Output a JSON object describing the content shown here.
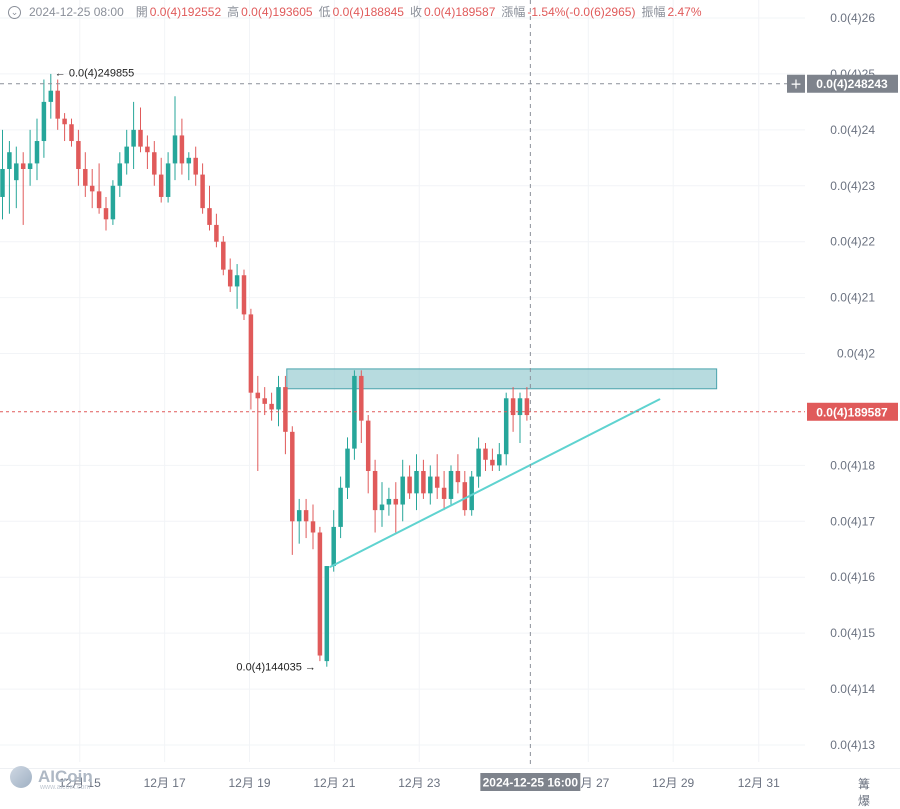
{
  "header": {
    "datetime": "2024-12-25 08:00",
    "open_label": "開",
    "open": "0.0(4)192552",
    "high_label": "高",
    "high": "0.0(4)193605",
    "low_label": "低",
    "low": "0.0(4)188845",
    "close_label": "收",
    "close": "0.0(4)189587",
    "change_label": "漲幅",
    "change": "-1.54%(-0.0(6)2965)",
    "amplitude_label": "振幅",
    "amplitude": "2.47%"
  },
  "crosshair": {
    "price_label": "0.0(4)248243",
    "time_label": "2024-12-25 16:00",
    "plus_glyph": "+"
  },
  "last_price": {
    "label": "0.0(4)189587",
    "value": 1.89587
  },
  "markers": {
    "high_text": "← 0.0(4)249855",
    "high_value": 2.49855,
    "low_text": "0.0(4)144035 →",
    "low_value": 1.44035
  },
  "watermark": {
    "brand": "AICoin",
    "sub": "www.aicoin.com"
  },
  "corner_icons": "篝 爆",
  "colors": {
    "up": "#26a69a",
    "down": "#e05a5a",
    "zone_fill": "#9fcfd4",
    "zone_border": "#4aa3ad",
    "trendline": "#5fd3d0",
    "crosshair_box": "#7e838c",
    "last_price_box": "#e05a5a",
    "axis_text": "#6b7280"
  },
  "chart_data": {
    "type": "candlestick",
    "units": "× 0.0(4) = price / 10^-5",
    "ylim": [
      1.285,
      2.63
    ],
    "y_ticks": [
      {
        "v": 2.6,
        "label": "0.0(4)26"
      },
      {
        "v": 2.5,
        "label": "0.0(4)25"
      },
      {
        "v": 2.4,
        "label": "0.0(4)24"
      },
      {
        "v": 2.3,
        "label": "0.0(4)23"
      },
      {
        "v": 2.2,
        "label": "0.0(4)22"
      },
      {
        "v": 2.1,
        "label": "0.0(4)21"
      },
      {
        "v": 2.0,
        "label": "0.0(4)2"
      },
      {
        "v": 1.8,
        "label": "0.0(4)18"
      },
      {
        "v": 1.7,
        "label": "0.0(4)17"
      },
      {
        "v": 1.6,
        "label": "0.0(4)16"
      },
      {
        "v": 1.5,
        "label": "0.0(4)15"
      },
      {
        "v": 1.4,
        "label": "0.0(4)14"
      },
      {
        "v": 1.3,
        "label": "0.0(4)13"
      }
    ],
    "x_ticks": [
      {
        "i": 11.2,
        "label": "12月 15"
      },
      {
        "i": 23.5,
        "label": "12月 17"
      },
      {
        "i": 35.8,
        "label": "12月 19"
      },
      {
        "i": 48.1,
        "label": "12月 21"
      },
      {
        "i": 60.4,
        "label": "12月 23"
      },
      {
        "i": 84.9,
        "label": "12月 27"
      },
      {
        "i": 97.2,
        "label": "12月 29"
      },
      {
        "i": 109.6,
        "label": "12月 31"
      }
    ],
    "crosshair_index": 76.5,
    "crosshair_value": 2.48243,
    "candles": [
      {
        "o": 2.28,
        "h": 2.4,
        "l": 2.24,
        "c": 2.33
      },
      {
        "o": 2.33,
        "h": 2.38,
        "l": 2.25,
        "c": 2.36
      },
      {
        "o": 2.31,
        "h": 2.37,
        "l": 2.26,
        "c": 2.34
      },
      {
        "o": 2.34,
        "h": 2.36,
        "l": 2.23,
        "c": 2.33
      },
      {
        "o": 2.33,
        "h": 2.4,
        "l": 2.3,
        "c": 2.34
      },
      {
        "o": 2.34,
        "h": 2.42,
        "l": 2.31,
        "c": 2.38
      },
      {
        "o": 2.38,
        "h": 2.49,
        "l": 2.35,
        "c": 2.45
      },
      {
        "o": 2.45,
        "h": 2.5,
        "l": 2.42,
        "c": 2.47
      },
      {
        "o": 2.47,
        "h": 2.49,
        "l": 2.4,
        "c": 2.42
      },
      {
        "o": 2.42,
        "h": 2.43,
        "l": 2.38,
        "c": 2.41
      },
      {
        "o": 2.41,
        "h": 2.42,
        "l": 2.37,
        "c": 2.38
      },
      {
        "o": 2.38,
        "h": 2.4,
        "l": 2.3,
        "c": 2.33
      },
      {
        "o": 2.33,
        "h": 2.36,
        "l": 2.28,
        "c": 2.3
      },
      {
        "o": 2.3,
        "h": 2.33,
        "l": 2.26,
        "c": 2.29
      },
      {
        "o": 2.29,
        "h": 2.34,
        "l": 2.25,
        "c": 2.26
      },
      {
        "o": 2.26,
        "h": 2.28,
        "l": 2.22,
        "c": 2.24
      },
      {
        "o": 2.24,
        "h": 2.31,
        "l": 2.23,
        "c": 2.3
      },
      {
        "o": 2.3,
        "h": 2.36,
        "l": 2.28,
        "c": 2.34
      },
      {
        "o": 2.34,
        "h": 2.4,
        "l": 2.32,
        "c": 2.37
      },
      {
        "o": 2.37,
        "h": 2.45,
        "l": 2.33,
        "c": 2.4
      },
      {
        "o": 2.4,
        "h": 2.44,
        "l": 2.36,
        "c": 2.37
      },
      {
        "o": 2.37,
        "h": 2.39,
        "l": 2.33,
        "c": 2.36
      },
      {
        "o": 2.36,
        "h": 2.38,
        "l": 2.3,
        "c": 2.32
      },
      {
        "o": 2.32,
        "h": 2.35,
        "l": 2.27,
        "c": 2.28
      },
      {
        "o": 2.28,
        "h": 2.36,
        "l": 2.27,
        "c": 2.34
      },
      {
        "o": 2.34,
        "h": 2.46,
        "l": 2.31,
        "c": 2.39
      },
      {
        "o": 2.39,
        "h": 2.42,
        "l": 2.32,
        "c": 2.34
      },
      {
        "o": 2.34,
        "h": 2.36,
        "l": 2.31,
        "c": 2.35
      },
      {
        "o": 2.35,
        "h": 2.37,
        "l": 2.3,
        "c": 2.32
      },
      {
        "o": 2.32,
        "h": 2.34,
        "l": 2.25,
        "c": 2.26
      },
      {
        "o": 2.26,
        "h": 2.3,
        "l": 2.22,
        "c": 2.23
      },
      {
        "o": 2.23,
        "h": 2.25,
        "l": 2.19,
        "c": 2.2
      },
      {
        "o": 2.2,
        "h": 2.21,
        "l": 2.14,
        "c": 2.15
      },
      {
        "o": 2.15,
        "h": 2.17,
        "l": 2.11,
        "c": 2.12
      },
      {
        "o": 2.12,
        "h": 2.16,
        "l": 2.08,
        "c": 2.14
      },
      {
        "o": 2.14,
        "h": 2.15,
        "l": 2.06,
        "c": 2.07
      },
      {
        "o": 2.07,
        "h": 2.08,
        "l": 1.9,
        "c": 1.93
      },
      {
        "o": 1.93,
        "h": 1.96,
        "l": 1.79,
        "c": 1.92
      },
      {
        "o": 1.92,
        "h": 1.94,
        "l": 1.89,
        "c": 1.91
      },
      {
        "o": 1.91,
        "h": 1.93,
        "l": 1.88,
        "c": 1.9
      },
      {
        "o": 1.9,
        "h": 1.96,
        "l": 1.87,
        "c": 1.94
      },
      {
        "o": 1.94,
        "h": 1.96,
        "l": 1.82,
        "c": 1.86
      },
      {
        "o": 1.86,
        "h": 1.87,
        "l": 1.64,
        "c": 1.7
      },
      {
        "o": 1.7,
        "h": 1.74,
        "l": 1.66,
        "c": 1.72
      },
      {
        "o": 1.72,
        "h": 1.74,
        "l": 1.67,
        "c": 1.7
      },
      {
        "o": 1.7,
        "h": 1.73,
        "l": 1.65,
        "c": 1.68
      },
      {
        "o": 1.68,
        "h": 1.69,
        "l": 1.45,
        "c": 1.46
      },
      {
        "o": 1.45,
        "h": 1.62,
        "l": 1.44,
        "c": 1.62
      },
      {
        "o": 1.62,
        "h": 1.72,
        "l": 1.61,
        "c": 1.69
      },
      {
        "o": 1.69,
        "h": 1.78,
        "l": 1.67,
        "c": 1.76
      },
      {
        "o": 1.76,
        "h": 1.85,
        "l": 1.74,
        "c": 1.83
      },
      {
        "o": 1.83,
        "h": 1.97,
        "l": 1.81,
        "c": 1.96
      },
      {
        "o": 1.96,
        "h": 1.97,
        "l": 1.84,
        "c": 1.88
      },
      {
        "o": 1.88,
        "h": 1.89,
        "l": 1.75,
        "c": 1.79
      },
      {
        "o": 1.79,
        "h": 1.81,
        "l": 1.68,
        "c": 1.72
      },
      {
        "o": 1.72,
        "h": 1.77,
        "l": 1.69,
        "c": 1.73
      },
      {
        "o": 1.73,
        "h": 1.76,
        "l": 1.71,
        "c": 1.74
      },
      {
        "o": 1.74,
        "h": 1.77,
        "l": 1.68,
        "c": 1.73
      },
      {
        "o": 1.73,
        "h": 1.81,
        "l": 1.7,
        "c": 1.78
      },
      {
        "o": 1.78,
        "h": 1.8,
        "l": 1.74,
        "c": 1.75
      },
      {
        "o": 1.75,
        "h": 1.82,
        "l": 1.72,
        "c": 1.79
      },
      {
        "o": 1.79,
        "h": 1.81,
        "l": 1.74,
        "c": 1.75
      },
      {
        "o": 1.75,
        "h": 1.8,
        "l": 1.73,
        "c": 1.78
      },
      {
        "o": 1.78,
        "h": 1.82,
        "l": 1.74,
        "c": 1.76
      },
      {
        "o": 1.76,
        "h": 1.79,
        "l": 1.72,
        "c": 1.74
      },
      {
        "o": 1.74,
        "h": 1.8,
        "l": 1.73,
        "c": 1.79
      },
      {
        "o": 1.79,
        "h": 1.82,
        "l": 1.75,
        "c": 1.77
      },
      {
        "o": 1.77,
        "h": 1.79,
        "l": 1.71,
        "c": 1.72
      },
      {
        "o": 1.72,
        "h": 1.79,
        "l": 1.71,
        "c": 1.78
      },
      {
        "o": 1.78,
        "h": 1.85,
        "l": 1.76,
        "c": 1.83
      },
      {
        "o": 1.83,
        "h": 1.84,
        "l": 1.79,
        "c": 1.81
      },
      {
        "o": 1.81,
        "h": 1.83,
        "l": 1.79,
        "c": 1.8
      },
      {
        "o": 1.8,
        "h": 1.84,
        "l": 1.79,
        "c": 1.82
      },
      {
        "o": 1.82,
        "h": 1.93,
        "l": 1.8,
        "c": 1.92
      },
      {
        "o": 1.92,
        "h": 1.94,
        "l": 1.86,
        "c": 1.89
      },
      {
        "o": 1.89,
        "h": 1.93,
        "l": 1.84,
        "c": 1.92
      },
      {
        "o": 1.92,
        "h": 1.94,
        "l": 1.88,
        "c": 1.89
      }
    ],
    "zone": {
      "i0": 41.2,
      "i1": 103.5,
      "top": 1.9725,
      "bottom": 1.937
    },
    "trendline": {
      "i0": 47.5,
      "v0": 1.6185,
      "i1": 95.2,
      "v1": 1.918
    }
  }
}
